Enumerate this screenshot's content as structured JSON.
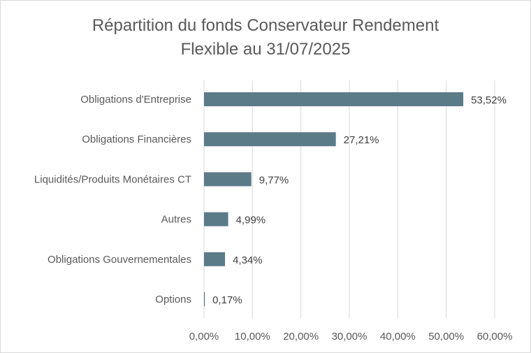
{
  "chart_data": {
    "type": "bar",
    "orientation": "horizontal",
    "title": "Répartition du fonds Conservateur Rendement Flexible au 31/07/2025",
    "title_lines": [
      "Répartition du fonds Conservateur Rendement",
      "Flexible au 31/07/2025"
    ],
    "categories": [
      "Obligations d'Entreprise",
      "Obligations Financières",
      "Liquidités/Produits Monétaires CT",
      "Autres",
      "Obligations Gouvernementales",
      "Options"
    ],
    "values": [
      53.52,
      27.21,
      9.77,
      4.99,
      4.34,
      0.17
    ],
    "data_labels": [
      "53,52%",
      "27,21%",
      "9,77%",
      "4,99%",
      "4,34%",
      "0,17%"
    ],
    "xlim": [
      0,
      60
    ],
    "xticks": [
      0,
      10,
      20,
      30,
      40,
      50,
      60
    ],
    "xtick_labels": [
      "0,00%",
      "10,00%",
      "20,00%",
      "30,00%",
      "40,00%",
      "50,00%",
      "60,00%"
    ],
    "xlabel": "",
    "ylabel": "",
    "grid": true,
    "legend": "none",
    "bar_color": "#5b7b89",
    "grid_color": "#d9d9d9"
  }
}
